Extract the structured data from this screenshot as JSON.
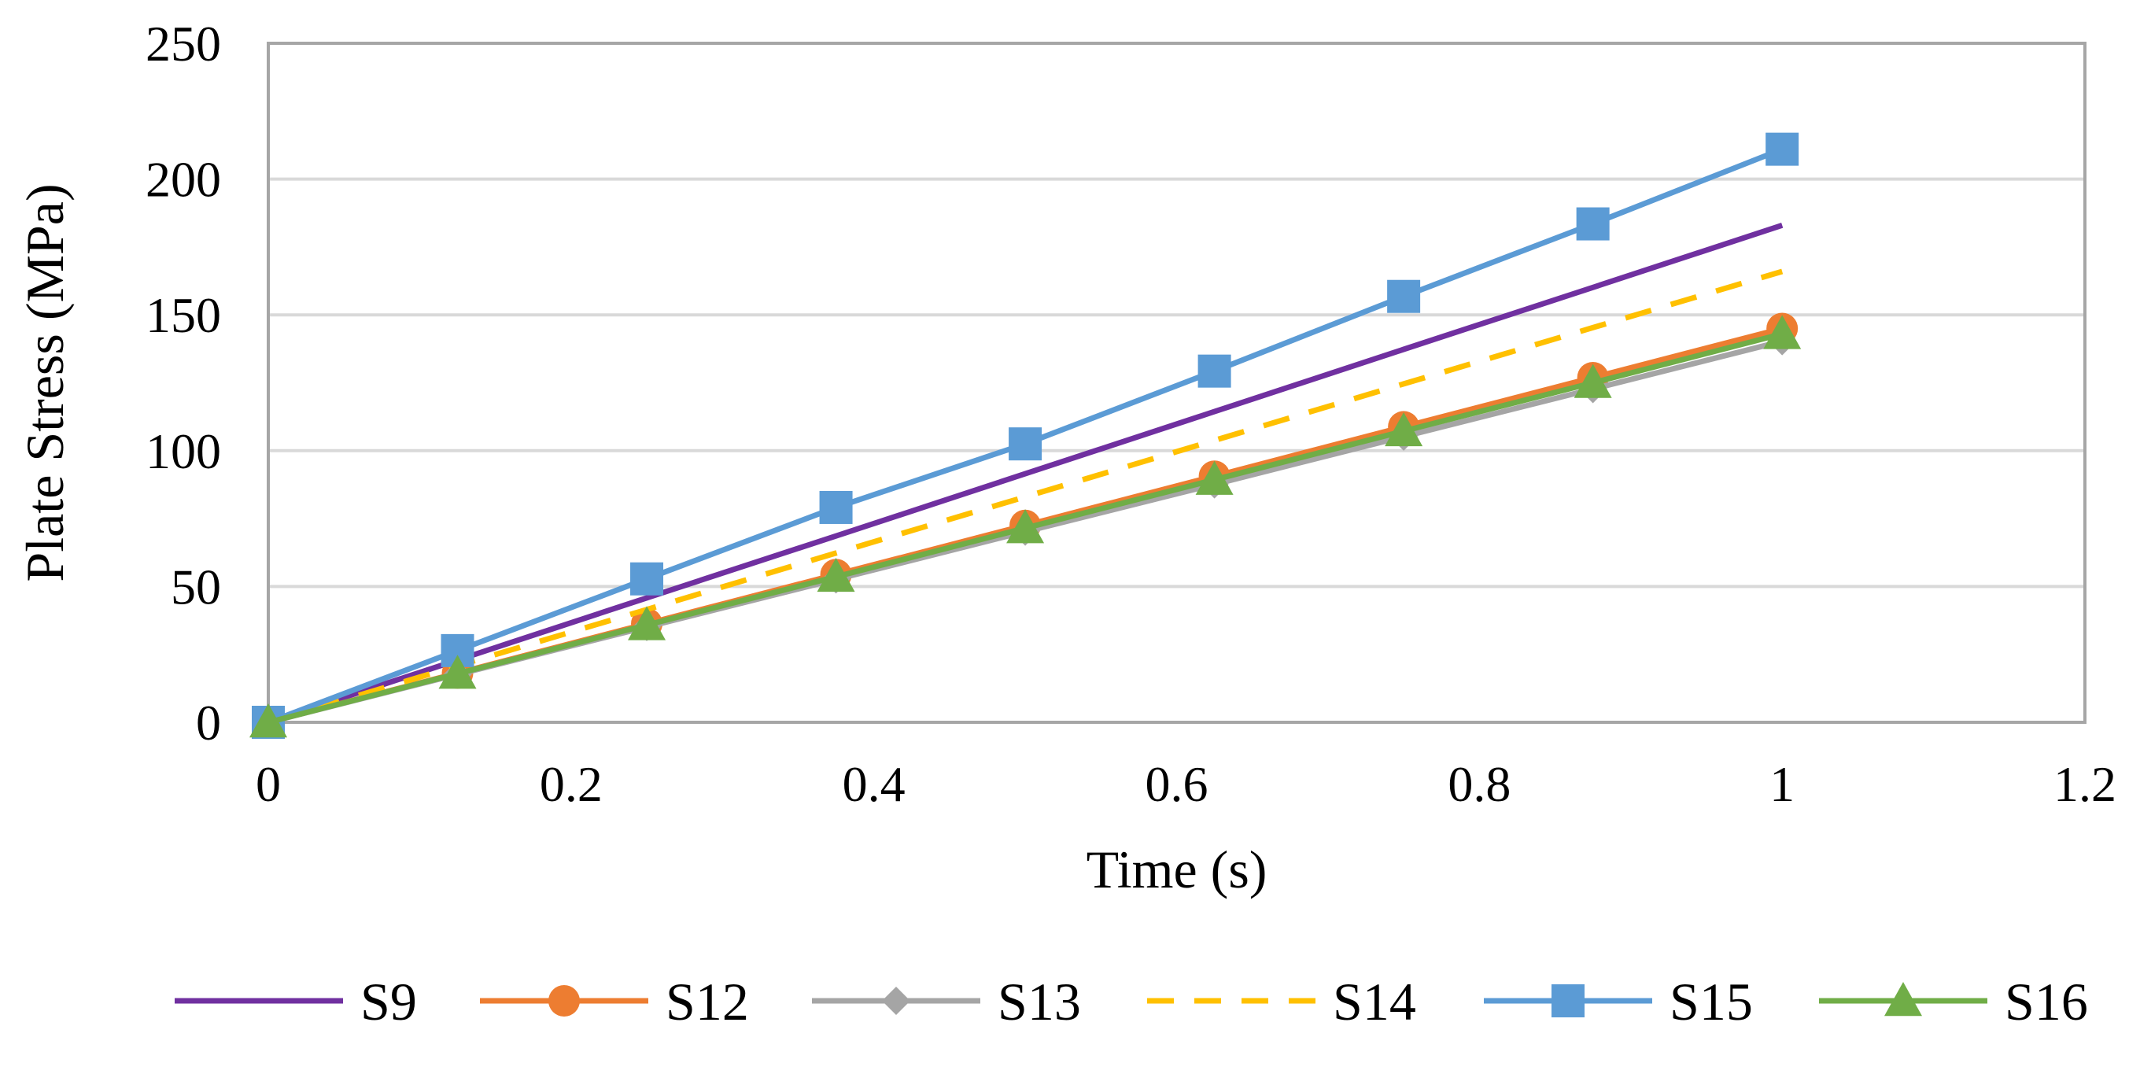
{
  "chart_data": {
    "type": "line",
    "title": "",
    "xlabel": "Time (s)",
    "ylabel": "Plate Stress (MPa)",
    "xlim": [
      0,
      1.2
    ],
    "ylim": [
      0,
      250
    ],
    "xticks": [
      0,
      0.2,
      0.4,
      0.6,
      0.8,
      1,
      1.2
    ],
    "xtick_labels": [
      "0",
      "0.2",
      "0.4",
      "0.6",
      "0.8",
      "1",
      "1.2"
    ],
    "yticks": [
      0,
      50,
      100,
      150,
      200,
      250
    ],
    "ytick_labels": [
      "0",
      "50",
      "100",
      "150",
      "200",
      "250"
    ],
    "grid": true,
    "legend_position": "bottom",
    "x": [
      0,
      0.125,
      0.25,
      0.375,
      0.5,
      0.625,
      0.75,
      0.875,
      1
    ],
    "series": [
      {
        "name": "S9",
        "color": "#7030A0",
        "marker": "none",
        "dash": "solid",
        "values": [
          0,
          22.9,
          45.8,
          68.6,
          91.5,
          114.4,
          137.3,
          160.1,
          183
        ]
      },
      {
        "name": "S12",
        "color": "#ED7D31",
        "marker": "circle",
        "dash": "solid",
        "values": [
          0,
          18.1,
          36.3,
          54.4,
          72.5,
          90.6,
          108.8,
          126.9,
          145
        ]
      },
      {
        "name": "S13",
        "color": "#A5A5A5",
        "marker": "diamond",
        "dash": "solid",
        "values": [
          0,
          17.6,
          35.1,
          52.6,
          70.2,
          87.6,
          105.2,
          122.7,
          140.3
        ]
      },
      {
        "name": "S14",
        "color": "#FFC000",
        "marker": "none",
        "dash": "dashed",
        "values": [
          0,
          20.8,
          41.5,
          62.3,
          83,
          103.8,
          124.6,
          145.3,
          166
        ]
      },
      {
        "name": "S15",
        "color": "#5B9BD5",
        "marker": "square",
        "dash": "solid",
        "values": [
          0,
          26.4,
          52.8,
          79.1,
          102.5,
          129.3,
          156.8,
          183.5,
          211
        ]
      },
      {
        "name": "S16",
        "color": "#70AD47",
        "marker": "triangle",
        "dash": "solid",
        "values": [
          0,
          17.9,
          35.8,
          53.6,
          71.5,
          89.3,
          107.2,
          125,
          143
        ]
      }
    ]
  }
}
